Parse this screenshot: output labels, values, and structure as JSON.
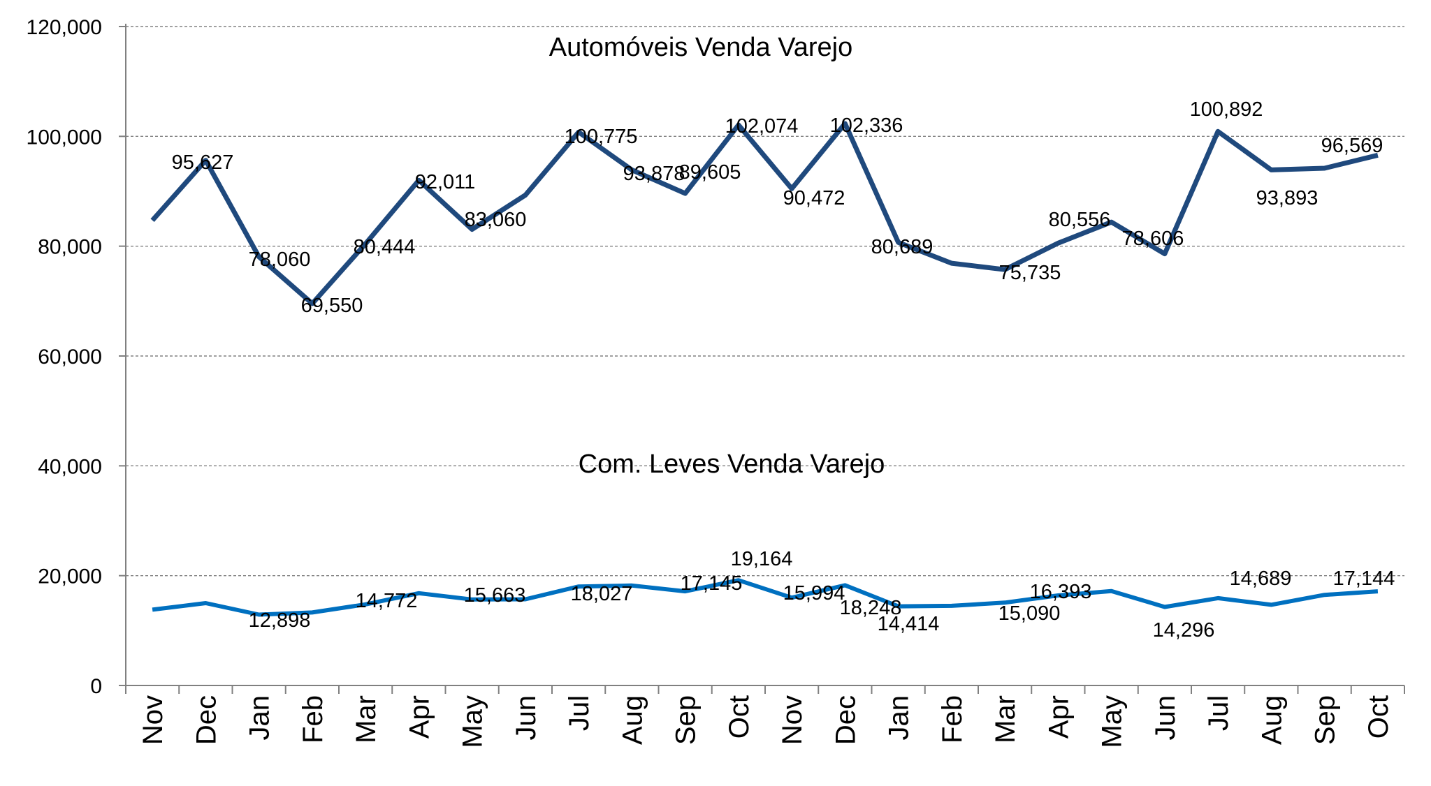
{
  "chart_data": {
    "type": "line",
    "categories": [
      "Nov",
      "Dec",
      "Jan",
      "Feb",
      "Mar",
      "Apr",
      "May",
      "Jun",
      "Jul",
      "Aug",
      "Sep",
      "Oct",
      "Nov",
      "Dec",
      "Jan",
      "Feb",
      "Mar",
      "Apr",
      "May",
      "Jun",
      "Jul",
      "Aug",
      "Sep",
      "Oct"
    ],
    "ylim": [
      0,
      120000
    ],
    "yticks": [
      "0",
      "20,000",
      "40,000",
      "60,000",
      "80,000",
      "100,000",
      "120,000"
    ],
    "ytick_values": [
      0,
      20000,
      40000,
      60000,
      80000,
      100000,
      120000
    ],
    "grid": true,
    "legend": "none",
    "series": [
      {
        "name": "Automóveis Venda Varejo",
        "color": "#1F497D",
        "values": [
          84700,
          95627,
          78060,
          69550,
          80444,
          92011,
          83060,
          89300,
          100775,
          93878,
          89605,
          102074,
          90472,
          102336,
          80689,
          76900,
          75735,
          80556,
          84400,
          78606,
          100892,
          93893,
          94200,
          96569
        ],
        "labels": [
          "",
          "95,627",
          "78,060",
          "69,550",
          "80,444",
          "92,011",
          "83,060",
          "",
          "100,775",
          "93,878",
          "89,605",
          "102,074",
          "90,472",
          "102,336",
          "80,689",
          "",
          "75,735",
          "80,556",
          "",
          "78,606",
          "100,892",
          "93,893",
          "",
          "96,569"
        ]
      },
      {
        "name": "Com. Leves Venda Varejo",
        "color": "#0070C0",
        "values": [
          13800,
          15000,
          12898,
          13300,
          14772,
          16800,
          15663,
          15700,
          18027,
          18200,
          17145,
          19164,
          15994,
          18248,
          14414,
          14500,
          15090,
          16393,
          17200,
          14296,
          15900,
          14689,
          16500,
          17144
        ],
        "labels": [
          "",
          "",
          "12,898",
          "",
          "14,772",
          "",
          "15,663",
          "",
          "18,027",
          "",
          "17,145",
          "19,164",
          "15,994",
          "18,248",
          "14,414",
          "",
          "15,090",
          "16,393",
          "",
          "14,296",
          "",
          "14,689",
          "",
          "17,144"
        ]
      }
    ]
  }
}
